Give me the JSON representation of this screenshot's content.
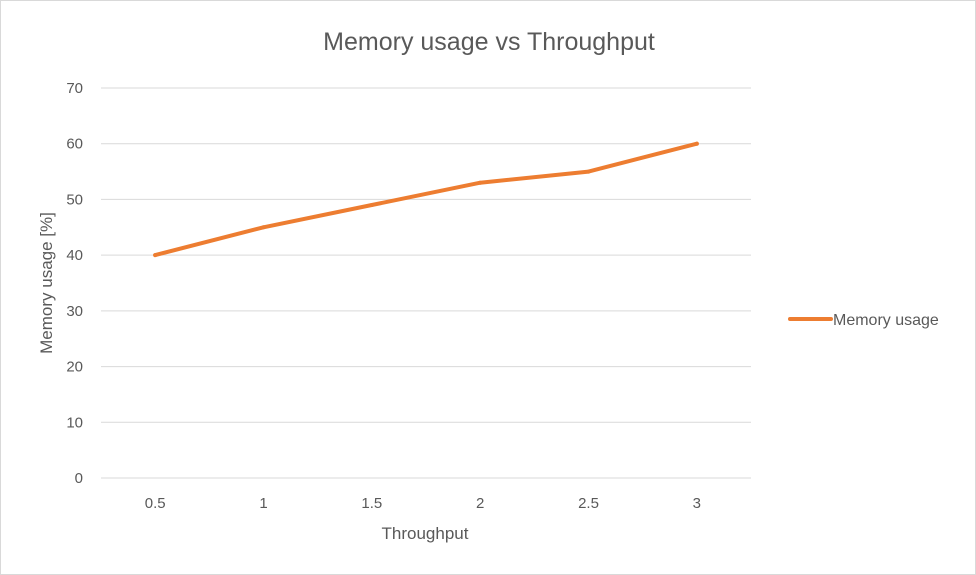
{
  "chart_data": {
    "type": "line",
    "title": "Memory usage vs Throughput",
    "xlabel": "Throughput",
    "ylabel": "Memory usage [%]",
    "categories": [
      "0.5",
      "1",
      "1.5",
      "2",
      "2.5",
      "3"
    ],
    "ylim": [
      0,
      70
    ],
    "yticks": [
      "0",
      "10",
      "20",
      "30",
      "40",
      "50",
      "60",
      "70"
    ],
    "grid": true,
    "legend_position": "right",
    "series": [
      {
        "name": "Memory usage",
        "values": [
          40,
          45,
          49,
          53,
          55,
          60
        ],
        "color": "#ed7d31"
      }
    ]
  }
}
